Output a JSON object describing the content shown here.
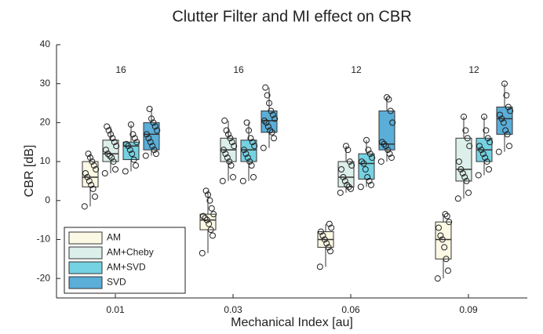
{
  "chart_data": {
    "type": "box",
    "title": "Clutter Filter and MI effect on CBR",
    "xlabel": "Mechanical Index [au]",
    "ylabel": "CBR [dB]",
    "categories": [
      "0.01",
      "0.03",
      "0.06",
      "0.09"
    ],
    "annotations": [
      "16",
      "16",
      "12",
      "12"
    ],
    "ylim": [
      -25,
      40
    ],
    "yticks": [
      -20,
      -10,
      0,
      10,
      20,
      30,
      40
    ],
    "legend": "lower left",
    "series": [
      {
        "name": "AM",
        "color": "#fbf8e4",
        "min": [
          -1.5,
          -13.5,
          -17,
          -20
        ],
        "q1": [
          3.5,
          -7.5,
          -12,
          -15
        ],
        "median": [
          6,
          -5,
          -10,
          -10
        ],
        "q3": [
          10,
          -3.5,
          -8,
          -5.5
        ],
        "max": [
          12,
          2.5,
          -6,
          -3.5
        ],
        "points": [
          [
            -1.5,
            1,
            3,
            4,
            5,
            6,
            7,
            8,
            9,
            10,
            11,
            12
          ],
          [
            -13.5,
            -9,
            -7.5,
            -6,
            -5,
            -4.5,
            -4,
            -3.5,
            -2,
            0,
            1.5,
            2.5
          ],
          [
            -17,
            -13,
            -12,
            -11,
            -10,
            -9,
            -8,
            -7,
            -6
          ],
          [
            -20,
            -18,
            -15,
            -12,
            -10,
            -9,
            -7,
            -5.5,
            -4,
            -3.5
          ]
        ]
      },
      {
        "name": "AM+Cheby",
        "color": "#dcefea",
        "min": [
          7,
          5,
          2,
          0.5
        ],
        "q1": [
          10,
          10,
          3.5,
          5
        ],
        "median": [
          12,
          13,
          6,
          8
        ],
        "q3": [
          15.5,
          16,
          10,
          16
        ],
        "max": [
          19,
          20.5,
          14,
          21.5
        ],
        "points": [
          [
            7,
            8,
            10,
            11,
            11.5,
            12,
            13,
            14,
            15,
            16,
            17,
            18,
            19
          ],
          [
            5,
            6,
            9,
            10,
            11,
            12,
            13,
            14,
            15,
            16,
            17,
            18,
            20.5
          ],
          [
            2,
            3,
            3.5,
            4,
            5,
            6,
            8,
            9,
            10,
            13,
            14
          ],
          [
            0.5,
            2,
            5,
            6,
            7,
            8,
            10,
            14,
            16,
            18,
            21.5
          ]
        ]
      },
      {
        "name": "AM+SVD",
        "color": "#74d2e2",
        "min": [
          7.5,
          5,
          3.5,
          6.5
        ],
        "q1": [
          10.5,
          10,
          5.5,
          10
        ],
        "median": [
          14,
          13,
          9.5,
          13
        ],
        "q3": [
          15,
          15.5,
          12,
          16
        ],
        "max": [
          19.5,
          20,
          15.5,
          21.5
        ],
        "points": [
          [
            7.5,
            9,
            10.5,
            12,
            13,
            14,
            14.5,
            15,
            16,
            17,
            19.5
          ],
          [
            5,
            6,
            9,
            10,
            11,
            12,
            13,
            14,
            15,
            16,
            18,
            20
          ],
          [
            3.5,
            4,
            5,
            6,
            8,
            9.5,
            10,
            11,
            12,
            13,
            15.5
          ],
          [
            6.5,
            8,
            10,
            11,
            12,
            13,
            14,
            15,
            16,
            18,
            21.5
          ]
        ]
      },
      {
        "name": "SVD",
        "color": "#5aaed8",
        "min": [
          11.5,
          13.5,
          10,
          12.5
        ],
        "q1": [
          13,
          17.5,
          13,
          17
        ],
        "median": [
          17,
          20.5,
          14.5,
          21
        ],
        "q3": [
          20,
          23,
          23,
          24
        ],
        "max": [
          23.5,
          29,
          26.5,
          30
        ],
        "points": [
          [
            11.5,
            12,
            13,
            14,
            15,
            16,
            17,
            18,
            19,
            20,
            21,
            23.5
          ],
          [
            13.5,
            16,
            17.5,
            18,
            19,
            20,
            20.5,
            21,
            22,
            23,
            25,
            27,
            29
          ],
          [
            10,
            11,
            12,
            13,
            14,
            14.5,
            15,
            20,
            23,
            26,
            26.5
          ],
          [
            12.5,
            14,
            17,
            18,
            20,
            21,
            22,
            23,
            24,
            27,
            30
          ]
        ]
      }
    ]
  }
}
